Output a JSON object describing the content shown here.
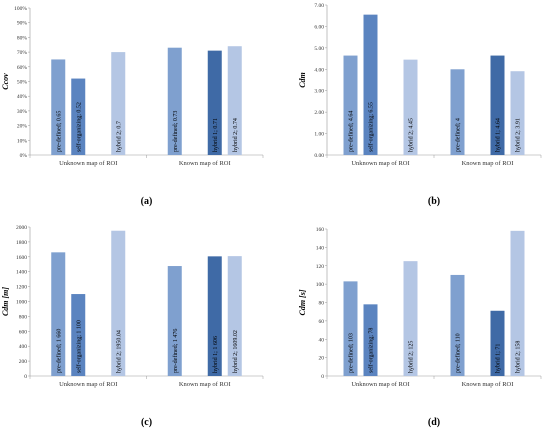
{
  "chart_data": [
    {
      "type": "bar",
      "panel_label": "(a)",
      "ylabel": "Ccov",
      "y_ticks": [
        "0%",
        "10%",
        "20%",
        "30%",
        "40%",
        "50%",
        "60%",
        "70%",
        "80%",
        "90%",
        "100%"
      ],
      "ylim": [
        0,
        1
      ],
      "groups": [
        "Unknown map of ROI",
        "Known map of ROI"
      ],
      "bars": [
        {
          "group": 0,
          "slot": 0,
          "series": "pre-defined",
          "value": 0.65,
          "label": "pre-defined; 0.65"
        },
        {
          "group": 0,
          "slot": 1,
          "series": "self-organizing",
          "value": 0.52,
          "label": "self-organizing; 0.52"
        },
        {
          "group": 0,
          "slot": 3,
          "series": "hybrid 2",
          "value": 0.7,
          "label": "hybrid 2; 0.7"
        },
        {
          "group": 1,
          "slot": 0,
          "series": "pre-defined",
          "value": 0.73,
          "label": "pre-defined; 0.73"
        },
        {
          "group": 1,
          "slot": 2,
          "series": "hybrid 1",
          "value": 0.71,
          "label": "hybrid 1; 0.71"
        },
        {
          "group": 1,
          "slot": 3,
          "series": "hybrid 2",
          "value": 0.74,
          "label": "hybrid 2; 0.74"
        }
      ]
    },
    {
      "type": "bar",
      "panel_label": "(b)",
      "ylabel": "Cdm",
      "y_ticks": [
        "0.00",
        "1.00",
        "2.00",
        "3.00",
        "4.00",
        "5.00",
        "6.00",
        "7.00"
      ],
      "ylim": [
        0,
        7
      ],
      "groups": [
        "Unknown map of ROI",
        "Known map of ROI"
      ],
      "bars": [
        {
          "group": 0,
          "slot": 0,
          "series": "pre-defined",
          "value": 4.64,
          "label": "pre-defined; 4.64"
        },
        {
          "group": 0,
          "slot": 1,
          "series": "self-organizing",
          "value": 6.55,
          "label": "self-organizing; 6.55"
        },
        {
          "group": 0,
          "slot": 3,
          "series": "hybrid 2",
          "value": 4.45,
          "label": "hybrid 2; 4.45"
        },
        {
          "group": 1,
          "slot": 0,
          "series": "pre-defined",
          "value": 4.0,
          "label": "pre-defined; 4"
        },
        {
          "group": 1,
          "slot": 2,
          "series": "hybrid 1",
          "value": 4.64,
          "label": "hybrid 1; 4.64"
        },
        {
          "group": 1,
          "slot": 3,
          "series": "hybrid 2",
          "value": 3.91,
          "label": "hybrid 2; 3.91"
        }
      ]
    },
    {
      "type": "bar",
      "panel_label": "(c)",
      "ylabel": "Cdm [m]",
      "y_ticks": [
        "0",
        "200",
        "400",
        "600",
        "800",
        "1000",
        "1200",
        "1400",
        "1600",
        "1800",
        "2000"
      ],
      "ylim": [
        0,
        2000
      ],
      "groups": [
        "Unknown map of ROI",
        "Known map of ROI"
      ],
      "bars": [
        {
          "group": 0,
          "slot": 0,
          "series": "pre-defined",
          "value": 1660,
          "label": "pre-defined; 1 660"
        },
        {
          "group": 0,
          "slot": 1,
          "series": "self-organizing",
          "value": 1100,
          "label": "self-organizing; 1 100"
        },
        {
          "group": 0,
          "slot": 3,
          "series": "hybrid 2",
          "value": 1950.04,
          "label": "hybrid 2; 1950.04"
        },
        {
          "group": 1,
          "slot": 0,
          "series": "pre-defined",
          "value": 1476,
          "label": "pre-defined; 1 476"
        },
        {
          "group": 1,
          "slot": 2,
          "series": "hybrid 1",
          "value": 1606,
          "label": "hybrid 1; 1 606"
        },
        {
          "group": 1,
          "slot": 3,
          "series": "hybrid 2",
          "value": 1609.02,
          "label": "hybrid 2; 1609.02"
        }
      ]
    },
    {
      "type": "bar",
      "panel_label": "(d)",
      "ylabel": "Cdm [s]",
      "y_ticks": [
        "0",
        "20",
        "40",
        "60",
        "80",
        "100",
        "120",
        "140",
        "160"
      ],
      "ylim": [
        0,
        160
      ],
      "groups": [
        "Unknown map of ROI",
        "Known map of ROI"
      ],
      "bars": [
        {
          "group": 0,
          "slot": 0,
          "series": "pre-defined",
          "value": 103,
          "label": "pre-defined; 103"
        },
        {
          "group": 0,
          "slot": 1,
          "series": "self-organizing",
          "value": 78,
          "label": "self-organizing; 78"
        },
        {
          "group": 0,
          "slot": 3,
          "series": "hybrid 2",
          "value": 125,
          "label": "hybrid 2; 125"
        },
        {
          "group": 1,
          "slot": 0,
          "series": "pre-defined",
          "value": 110,
          "label": "pre-defined; 110"
        },
        {
          "group": 1,
          "slot": 2,
          "series": "hybrid 1",
          "value": 71,
          "label": "hybrid 1; 71"
        },
        {
          "group": 1,
          "slot": 3,
          "series": "hybrid 2",
          "value": 158,
          "label": "hybrid 2; 158"
        }
      ]
    }
  ],
  "colors": {
    "pre-defined": "#7fa0cf",
    "self-organizing": "#5b84c0",
    "hybrid 1": "#3f6aa6",
    "hybrid 2": "#b4c6e4",
    "axis": "#999999"
  }
}
